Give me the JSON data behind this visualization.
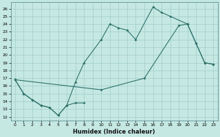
{
  "xlabel": "Humidex (Indice chaleur)",
  "bg_color": "#c5e8e3",
  "line_color": "#2d7068",
  "grid_color": "#a0ccc8",
  "xlim": [
    -0.5,
    23.5
  ],
  "ylim": [
    11.5,
    26.8
  ],
  "xticks": [
    0,
    1,
    2,
    3,
    4,
    5,
    6,
    7,
    8,
    9,
    10,
    11,
    12,
    13,
    14,
    15,
    16,
    17,
    18,
    19,
    20,
    21,
    22,
    23
  ],
  "yticks": [
    12,
    13,
    14,
    15,
    16,
    17,
    18,
    19,
    20,
    21,
    22,
    23,
    24,
    25,
    26
  ],
  "line_zigzag": {
    "x": [
      0,
      1,
      2,
      3,
      4,
      5,
      6,
      7,
      8
    ],
    "y": [
      16.8,
      15.0,
      14.2,
      13.5,
      13.2,
      12.2,
      13.5,
      13.8,
      13.8
    ]
  },
  "line_upper": {
    "x": [
      0,
      1,
      2,
      3,
      4,
      5,
      6,
      7,
      8,
      10,
      11,
      12,
      13,
      14,
      16,
      17,
      18,
      20,
      21,
      22,
      23
    ],
    "y": [
      16.8,
      15.0,
      14.2,
      13.5,
      13.2,
      12.2,
      13.5,
      16.5,
      19.0,
      22.0,
      24.0,
      23.5,
      23.2,
      22.0,
      26.2,
      25.5,
      25.0,
      24.0,
      21.5,
      19.0,
      18.8
    ]
  },
  "line_diag": {
    "x": [
      0,
      10,
      15,
      19,
      20,
      21,
      22,
      23
    ],
    "y": [
      16.8,
      15.5,
      17.0,
      23.8,
      24.0,
      21.5,
      19.0,
      18.8
    ]
  }
}
